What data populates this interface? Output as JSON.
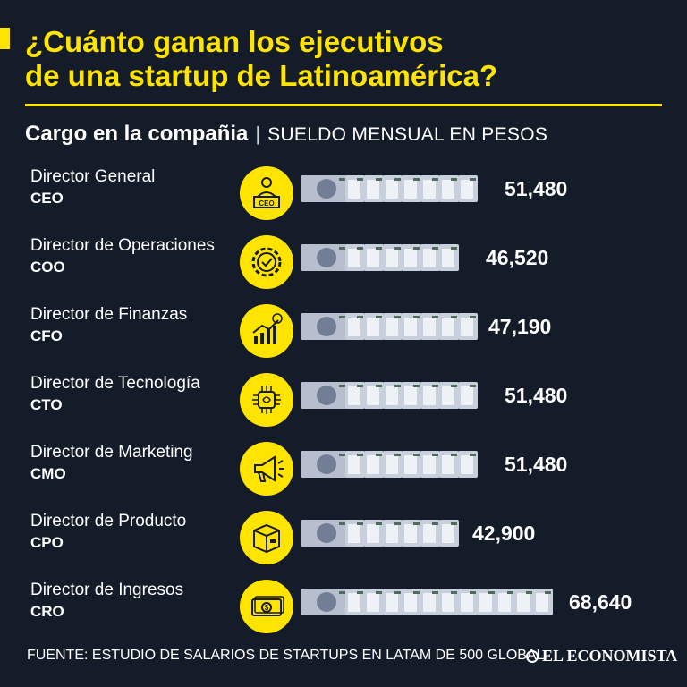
{
  "header": {
    "title_line1": "¿Cuánto ganan los ejecutivos",
    "title_line2": "de una startup de Latinoamérica?",
    "col_label": "Cargo en la compañia",
    "separator": "|",
    "unit_label": "SUELDO MENSUAL EN PESOS"
  },
  "chart_data": {
    "type": "bar",
    "categories": [
      "Director General",
      "Director de Operaciones",
      "Director de Finanzas",
      "Director de Tecnología",
      "Director de Marketing",
      "Director de Producto",
      "Director de Ingresos"
    ],
    "abbreviations": [
      "CEO",
      "COO",
      "CFO",
      "CTO",
      "CMO",
      "CPO",
      "CRO"
    ],
    "values": [
      51480,
      46520,
      47190,
      51480,
      51480,
      42900,
      68640
    ],
    "value_labels": [
      "51,480",
      "46,520",
      "47,190",
      "51,480",
      "51,480",
      "42,900",
      "68,640"
    ],
    "icons": [
      "executive-ceo-icon",
      "gear-check-icon",
      "growth-chart-icon",
      "chip-brain-icon",
      "megaphone-icon",
      "package-box-icon",
      "banknotes-icon"
    ],
    "title": "¿Cuánto ganan los ejecutivos de una startup de Latinoamérica?",
    "ylabel": "SUELDO MENSUAL EN PESOS",
    "legend": "none",
    "grid": false
  },
  "colors": {
    "background": "#141c2a",
    "accent": "#ffe400",
    "text": "#ffffff",
    "banknote": "#c9d0dd"
  },
  "footer": {
    "source": "FUENTE: ESTUDIO DE SALARIOS DE STARTUPS EN LATAM DE 500 GLOBAL",
    "logo": "EL ECONOMISTA"
  }
}
